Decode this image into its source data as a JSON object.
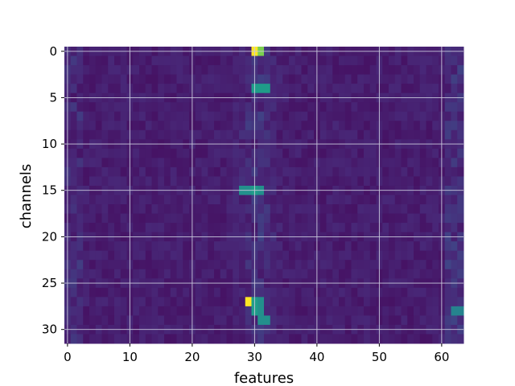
{
  "chart_data": {
    "type": "heatmap",
    "colormap": "viridis",
    "xlabel": "features",
    "ylabel": "channels",
    "x_range": [
      0,
      63
    ],
    "y_range": [
      0,
      31
    ],
    "y_inverted": true,
    "grid": true,
    "grid_color": "#c8c8dc",
    "x_ticks": [
      0,
      10,
      20,
      30,
      40,
      50,
      60
    ],
    "y_ticks": [
      0,
      5,
      10,
      15,
      20,
      25,
      30
    ],
    "value_range": [
      0,
      1
    ],
    "background_level": 0.05,
    "dominant_cells": [
      {
        "row": 0,
        "col": 30,
        "value": 1.0
      },
      {
        "row": 0,
        "col": 31,
        "value": 0.8
      },
      {
        "row": 27,
        "col": 29,
        "value": 1.0
      },
      {
        "row": 4,
        "col": 30,
        "value": 0.55
      },
      {
        "row": 4,
        "col": 31,
        "value": 0.55
      },
      {
        "row": 4,
        "col": 32,
        "value": 0.55
      },
      {
        "row": 15,
        "col": 28,
        "value": 0.5
      },
      {
        "row": 15,
        "col": 29,
        "value": 0.5
      },
      {
        "row": 15,
        "col": 30,
        "value": 0.55
      },
      {
        "row": 15,
        "col": 31,
        "value": 0.5
      },
      {
        "row": 27,
        "col": 30,
        "value": 0.55
      },
      {
        "row": 27,
        "col": 31,
        "value": 0.5
      },
      {
        "row": 28,
        "col": 30,
        "value": 0.55
      },
      {
        "row": 28,
        "col": 31,
        "value": 0.5
      },
      {
        "row": 29,
        "col": 31,
        "value": 0.5
      },
      {
        "row": 29,
        "col": 32,
        "value": 0.5
      },
      {
        "row": 28,
        "col": 62,
        "value": 0.45
      },
      {
        "row": 28,
        "col": 63,
        "value": 0.45
      }
    ]
  }
}
